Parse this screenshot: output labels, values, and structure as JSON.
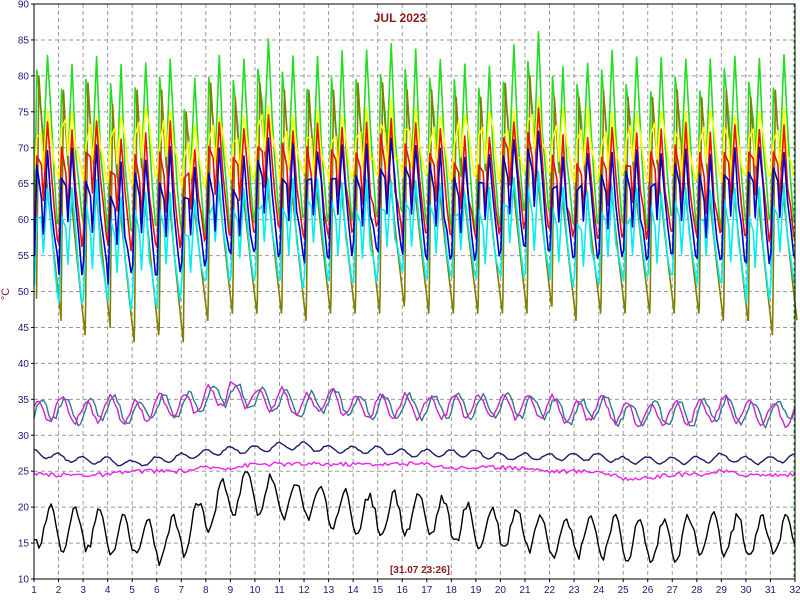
{
  "chart_data": {
    "type": "line",
    "title": "JUL 2023",
    "ylabel": "°C",
    "footer": "[31.07 23:26]",
    "xlim": [
      1,
      32
    ],
    "ylim": [
      10,
      90
    ],
    "x_ticks": [
      1,
      2,
      3,
      4,
      5,
      6,
      7,
      8,
      9,
      10,
      11,
      12,
      13,
      14,
      15,
      16,
      17,
      18,
      19,
      20,
      21,
      22,
      23,
      24,
      25,
      26,
      27,
      28,
      29,
      30,
      31,
      32
    ],
    "y_ticks": [
      10,
      15,
      20,
      25,
      30,
      35,
      40,
      45,
      50,
      55,
      60,
      65,
      70,
      75,
      80,
      85,
      90
    ],
    "grid": true,
    "series": [
      {
        "color": "#22dd22",
        "shape": "sawtooth",
        "pattern": "daily-double",
        "peak": [
          83,
          82,
          83,
          81,
          82,
          83,
          80,
          83,
          82,
          85,
          83,
          83,
          83,
          84,
          84,
          83,
          83,
          82,
          82,
          84,
          86,
          82,
          82,
          83,
          82,
          82,
          83,
          82,
          83,
          83,
          83
        ],
        "trough": [
          60,
          60,
          60,
          58,
          59,
          60,
          58,
          60,
          59,
          61,
          60,
          60,
          60,
          61,
          61,
          60,
          60,
          59,
          60,
          61,
          62,
          60,
          59,
          60,
          59,
          60,
          60,
          59,
          60,
          60,
          60
        ]
      },
      {
        "color": "#808000",
        "shape": "sawtooth",
        "pattern": "daily-decay",
        "peak": [
          80,
          78,
          79,
          76,
          78,
          78,
          75,
          79,
          77,
          79,
          78,
          78,
          78,
          79,
          79,
          78,
          78,
          77,
          77,
          79,
          80,
          77,
          77,
          78,
          77,
          77,
          78,
          77,
          78,
          77,
          78
        ],
        "trough": [
          47,
          44,
          46,
          43,
          44,
          43,
          46,
          47,
          47,
          47,
          46,
          47,
          47,
          47,
          48,
          47,
          47,
          47,
          47,
          47,
          48,
          46,
          47,
          47,
          47,
          47,
          47,
          46,
          46,
          44,
          46
        ]
      },
      {
        "color": "#ffff00",
        "shape": "sawtooth",
        "pattern": "daily-double",
        "peak": [
          75,
          75,
          75,
          74,
          75,
          75,
          73,
          75,
          75,
          76,
          75,
          75,
          75,
          76,
          76,
          75,
          75,
          75,
          75,
          76,
          77,
          75,
          75,
          75,
          75,
          75,
          75,
          75,
          75,
          75,
          75
        ],
        "trough": [
          66,
          66,
          66,
          65,
          66,
          66,
          65,
          66,
          66,
          67,
          66,
          66,
          66,
          67,
          67,
          66,
          66,
          66,
          66,
          67,
          67,
          66,
          66,
          66,
          66,
          66,
          66,
          66,
          66,
          66,
          66
        ]
      },
      {
        "color": "#ee1100",
        "shape": "sawtooth",
        "pattern": "daily-double",
        "peak": [
          73,
          73,
          73,
          71,
          72,
          73,
          70,
          73,
          72,
          74,
          73,
          73,
          73,
          74,
          74,
          73,
          73,
          72,
          72,
          74,
          75,
          72,
          72,
          73,
          72,
          72,
          73,
          72,
          73,
          73,
          73
        ],
        "trough": [
          58,
          57,
          58,
          56,
          57,
          56,
          57,
          58,
          58,
          59,
          58,
          58,
          58,
          59,
          59,
          58,
          58,
          58,
          58,
          59,
          59,
          58,
          58,
          58,
          58,
          58,
          58,
          58,
          58,
          57,
          58
        ]
      },
      {
        "color": "#00eeee",
        "shape": "sawtooth",
        "pattern": "daily-double",
        "peak": [
          65,
          64,
          65,
          63,
          64,
          64,
          62,
          65,
          64,
          66,
          65,
          65,
          65,
          66,
          66,
          65,
          65,
          64,
          64,
          66,
          67,
          64,
          64,
          65,
          64,
          64,
          65,
          64,
          65,
          64,
          65
        ],
        "trough": [
          50,
          49,
          50,
          48,
          49,
          48,
          51,
          52,
          52,
          52,
          51,
          52,
          52,
          52,
          53,
          52,
          52,
          52,
          52,
          52,
          53,
          51,
          52,
          52,
          52,
          52,
          52,
          51,
          51,
          49,
          51
        ]
      },
      {
        "color": "#0000cc",
        "shape": "sawtooth",
        "pattern": "daily-double",
        "peak": [
          70,
          70,
          70,
          68,
          69,
          70,
          67,
          70,
          69,
          71,
          70,
          70,
          70,
          71,
          71,
          70,
          70,
          69,
          69,
          71,
          72,
          69,
          69,
          70,
          69,
          69,
          70,
          69,
          70,
          70,
          70
        ],
        "trough": [
          55,
          53,
          54,
          52,
          53,
          53,
          54,
          55,
          55,
          55,
          55,
          55,
          55,
          56,
          56,
          55,
          55,
          55,
          55,
          56,
          56,
          55,
          55,
          55,
          55,
          55,
          55,
          54,
          55,
          54,
          55
        ]
      },
      {
        "color": "#2e7b8b",
        "shape": "wave",
        "values": [
          33,
          34,
          33,
          34,
          33,
          34,
          34,
          35,
          36,
          35,
          35,
          34,
          35,
          34,
          34,
          34,
          34,
          34,
          34,
          34,
          34,
          34,
          33,
          34,
          33,
          33,
          33,
          33,
          34,
          33,
          33,
          34
        ]
      },
      {
        "color": "#cc22cc",
        "shape": "wave",
        "values": [
          33,
          34,
          33,
          34,
          33,
          34,
          34,
          35,
          36,
          35,
          35,
          34,
          35,
          34,
          34,
          34,
          34,
          34,
          34,
          34,
          34,
          34,
          33,
          34,
          33,
          33,
          33,
          33,
          34,
          33,
          33,
          33
        ]
      },
      {
        "color": "#1a1a6a",
        "shape": "wave",
        "values": [
          27.5,
          27,
          26.5,
          26.5,
          26,
          26.5,
          27,
          27.5,
          28,
          28,
          28.5,
          28.5,
          28,
          28,
          28,
          27.5,
          27.5,
          27.5,
          27.5,
          27,
          27,
          27,
          27,
          27,
          26.5,
          26.5,
          26.5,
          26.5,
          27,
          26.5,
          26.5,
          27
        ]
      },
      {
        "color": "#ee22ee",
        "shape": "step",
        "values": [
          24.5,
          24.5,
          24.5,
          24.5,
          25,
          25,
          25,
          25.5,
          25.5,
          26,
          26,
          26,
          26,
          26,
          26,
          26,
          26,
          25.5,
          25.5,
          25.5,
          25.5,
          25,
          25,
          25,
          24,
          24,
          24.5,
          24.5,
          25,
          24.5,
          24.5,
          24.5
        ]
      },
      {
        "color": "#000000",
        "shape": "wave",
        "values": [
          17.5,
          17,
          17,
          16.5,
          16,
          15,
          16,
          19,
          22,
          22,
          21,
          21,
          20,
          19,
          19,
          19,
          19,
          18,
          17,
          17,
          17,
          16,
          16,
          16,
          15.5,
          15,
          15.5,
          16,
          16,
          16,
          16,
          16
        ]
      }
    ]
  }
}
